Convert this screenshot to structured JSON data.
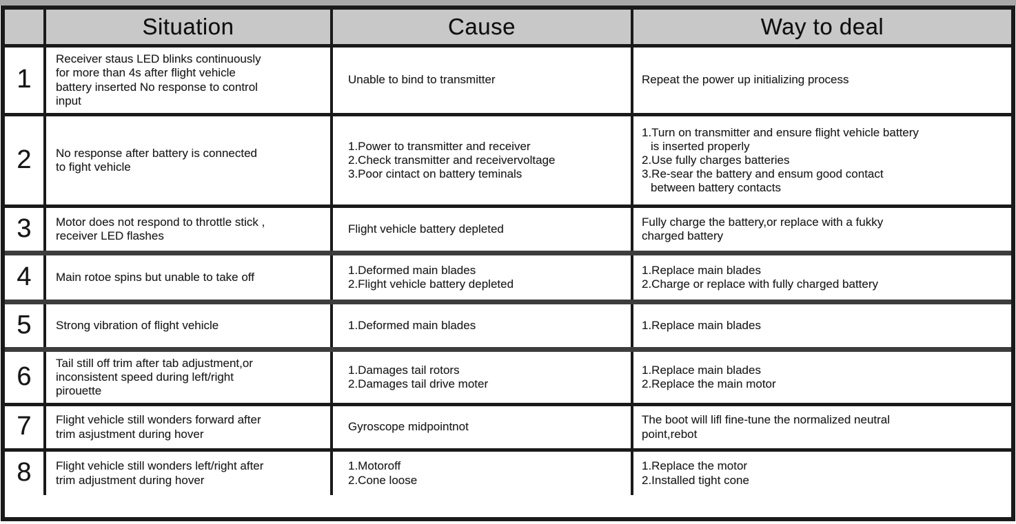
{
  "colors": {
    "header_bg": "#c8c8c8",
    "border": "#1a1a1a",
    "edge": "#a9a9a9",
    "text": "#1e1e1e"
  },
  "header": {
    "number": "",
    "situation": "Situation",
    "cause": "Cause",
    "way": "Way to deal"
  },
  "rows": [
    {
      "num": "1",
      "situation": [
        "Receiver staus LED blinks continuously",
        "for more than 4s after flight vehicle",
        "battery inserted No response to control",
        "input"
      ],
      "cause": [
        "Unable to bind to transmitter"
      ],
      "way": [
        "Repeat the power up initializing process"
      ]
    },
    {
      "num": "2",
      "situation": [
        "No response after battery is connected",
        "to fight vehicle"
      ],
      "cause": [
        "1.Power to transmitter and receiver",
        "2.Check transmitter and receivervoltage",
        "3.Poor cintact on battery teminals"
      ],
      "way": [
        "1.Turn on transmitter and ensure flight vehicle battery",
        "  is inserted properly",
        "2.Use fully charges batteries",
        "3.Re-sear the battery and ensum good contact",
        "  between battery contacts"
      ]
    },
    {
      "num": "3",
      "situation": [
        "Motor does not respond to throttle stick ,",
        "receiver LED flashes"
      ],
      "cause": [
        "Flight vehicle battery depleted"
      ],
      "way": [
        "Fully charge the battery,or replace with a fukky",
        "charged battery"
      ]
    },
    {
      "num": "4",
      "situation": [
        "Main rotoe spins but unable to take off"
      ],
      "cause": [
        "1.Deformed main blades",
        "2.Flight vehicle battery depleted"
      ],
      "way": [
        "1.Replace main blades",
        "2.Charge or replace with fully charged battery"
      ]
    },
    {
      "num": "5",
      "situation": [
        "Strong vibration of flight vehicle"
      ],
      "cause": [
        "1.Deformed main blades"
      ],
      "way": [
        "1.Replace main blades"
      ]
    },
    {
      "num": "6",
      "situation": [
        "Tail still off trim after tab adjustment,or",
        "inconsistent speed during left/right",
        "pirouette"
      ],
      "cause": [
        "1.Damages tail rotors",
        "2.Damages tail drive moter"
      ],
      "way": [
        "1.Replace main blades",
        "2.Replace the main motor"
      ]
    },
    {
      "num": "7",
      "situation": [
        "Flight vehicle still wonders forward after",
        "trim asjustment during hover"
      ],
      "cause": [
        "Gyroscope midpointnot"
      ],
      "way": [
        "The boot will lifl fine-tune the normalized neutral",
        "point,rebot"
      ]
    },
    {
      "num": "8",
      "situation": [
        "Flight vehicle still wonders left/right after",
        "trim adjustment during hover"
      ],
      "cause": [
        "1.Motoroff",
        "2.Cone loose"
      ],
      "way": [
        "1.Replace the motor",
        "2.Installed tight cone"
      ]
    }
  ]
}
